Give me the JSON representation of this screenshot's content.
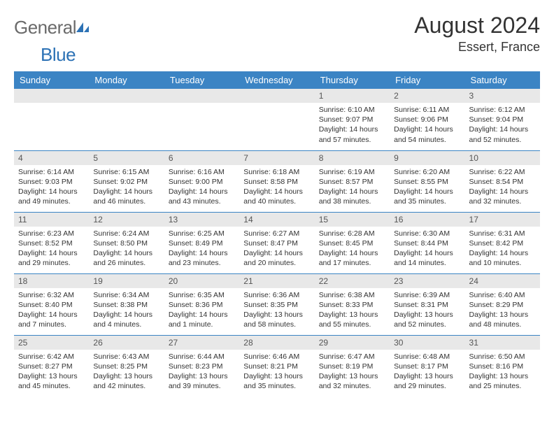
{
  "brand": {
    "part1": "General",
    "part2": "Blue"
  },
  "title": "August 2024",
  "location": "Essert, France",
  "colors": {
    "header_bg": "#3b84c4",
    "header_fg": "#ffffff",
    "daynum_bg": "#e8e8e8",
    "cell_border": "#3b84c4",
    "text": "#333333",
    "logo_gray": "#6a6a6a",
    "logo_blue": "#2d72b5"
  },
  "weekdays": [
    "Sunday",
    "Monday",
    "Tuesday",
    "Wednesday",
    "Thursday",
    "Friday",
    "Saturday"
  ],
  "weeks": [
    [
      null,
      null,
      null,
      null,
      {
        "n": "1",
        "sunrise": "6:10 AM",
        "sunset": "9:07 PM",
        "daylight": "14 hours and 57 minutes."
      },
      {
        "n": "2",
        "sunrise": "6:11 AM",
        "sunset": "9:06 PM",
        "daylight": "14 hours and 54 minutes."
      },
      {
        "n": "3",
        "sunrise": "6:12 AM",
        "sunset": "9:04 PM",
        "daylight": "14 hours and 52 minutes."
      }
    ],
    [
      {
        "n": "4",
        "sunrise": "6:14 AM",
        "sunset": "9:03 PM",
        "daylight": "14 hours and 49 minutes."
      },
      {
        "n": "5",
        "sunrise": "6:15 AM",
        "sunset": "9:02 PM",
        "daylight": "14 hours and 46 minutes."
      },
      {
        "n": "6",
        "sunrise": "6:16 AM",
        "sunset": "9:00 PM",
        "daylight": "14 hours and 43 minutes."
      },
      {
        "n": "7",
        "sunrise": "6:18 AM",
        "sunset": "8:58 PM",
        "daylight": "14 hours and 40 minutes."
      },
      {
        "n": "8",
        "sunrise": "6:19 AM",
        "sunset": "8:57 PM",
        "daylight": "14 hours and 38 minutes."
      },
      {
        "n": "9",
        "sunrise": "6:20 AM",
        "sunset": "8:55 PM",
        "daylight": "14 hours and 35 minutes."
      },
      {
        "n": "10",
        "sunrise": "6:22 AM",
        "sunset": "8:54 PM",
        "daylight": "14 hours and 32 minutes."
      }
    ],
    [
      {
        "n": "11",
        "sunrise": "6:23 AM",
        "sunset": "8:52 PM",
        "daylight": "14 hours and 29 minutes."
      },
      {
        "n": "12",
        "sunrise": "6:24 AM",
        "sunset": "8:50 PM",
        "daylight": "14 hours and 26 minutes."
      },
      {
        "n": "13",
        "sunrise": "6:25 AM",
        "sunset": "8:49 PM",
        "daylight": "14 hours and 23 minutes."
      },
      {
        "n": "14",
        "sunrise": "6:27 AM",
        "sunset": "8:47 PM",
        "daylight": "14 hours and 20 minutes."
      },
      {
        "n": "15",
        "sunrise": "6:28 AM",
        "sunset": "8:45 PM",
        "daylight": "14 hours and 17 minutes."
      },
      {
        "n": "16",
        "sunrise": "6:30 AM",
        "sunset": "8:44 PM",
        "daylight": "14 hours and 14 minutes."
      },
      {
        "n": "17",
        "sunrise": "6:31 AM",
        "sunset": "8:42 PM",
        "daylight": "14 hours and 10 minutes."
      }
    ],
    [
      {
        "n": "18",
        "sunrise": "6:32 AM",
        "sunset": "8:40 PM",
        "daylight": "14 hours and 7 minutes."
      },
      {
        "n": "19",
        "sunrise": "6:34 AM",
        "sunset": "8:38 PM",
        "daylight": "14 hours and 4 minutes."
      },
      {
        "n": "20",
        "sunrise": "6:35 AM",
        "sunset": "8:36 PM",
        "daylight": "14 hours and 1 minute."
      },
      {
        "n": "21",
        "sunrise": "6:36 AM",
        "sunset": "8:35 PM",
        "daylight": "13 hours and 58 minutes."
      },
      {
        "n": "22",
        "sunrise": "6:38 AM",
        "sunset": "8:33 PM",
        "daylight": "13 hours and 55 minutes."
      },
      {
        "n": "23",
        "sunrise": "6:39 AM",
        "sunset": "8:31 PM",
        "daylight": "13 hours and 52 minutes."
      },
      {
        "n": "24",
        "sunrise": "6:40 AM",
        "sunset": "8:29 PM",
        "daylight": "13 hours and 48 minutes."
      }
    ],
    [
      {
        "n": "25",
        "sunrise": "6:42 AM",
        "sunset": "8:27 PM",
        "daylight": "13 hours and 45 minutes."
      },
      {
        "n": "26",
        "sunrise": "6:43 AM",
        "sunset": "8:25 PM",
        "daylight": "13 hours and 42 minutes."
      },
      {
        "n": "27",
        "sunrise": "6:44 AM",
        "sunset": "8:23 PM",
        "daylight": "13 hours and 39 minutes."
      },
      {
        "n": "28",
        "sunrise": "6:46 AM",
        "sunset": "8:21 PM",
        "daylight": "13 hours and 35 minutes."
      },
      {
        "n": "29",
        "sunrise": "6:47 AM",
        "sunset": "8:19 PM",
        "daylight": "13 hours and 32 minutes."
      },
      {
        "n": "30",
        "sunrise": "6:48 AM",
        "sunset": "8:17 PM",
        "daylight": "13 hours and 29 minutes."
      },
      {
        "n": "31",
        "sunrise": "6:50 AM",
        "sunset": "8:16 PM",
        "daylight": "13 hours and 25 minutes."
      }
    ]
  ],
  "labels": {
    "sunrise": "Sunrise:",
    "sunset": "Sunset:",
    "daylight": "Daylight:"
  }
}
